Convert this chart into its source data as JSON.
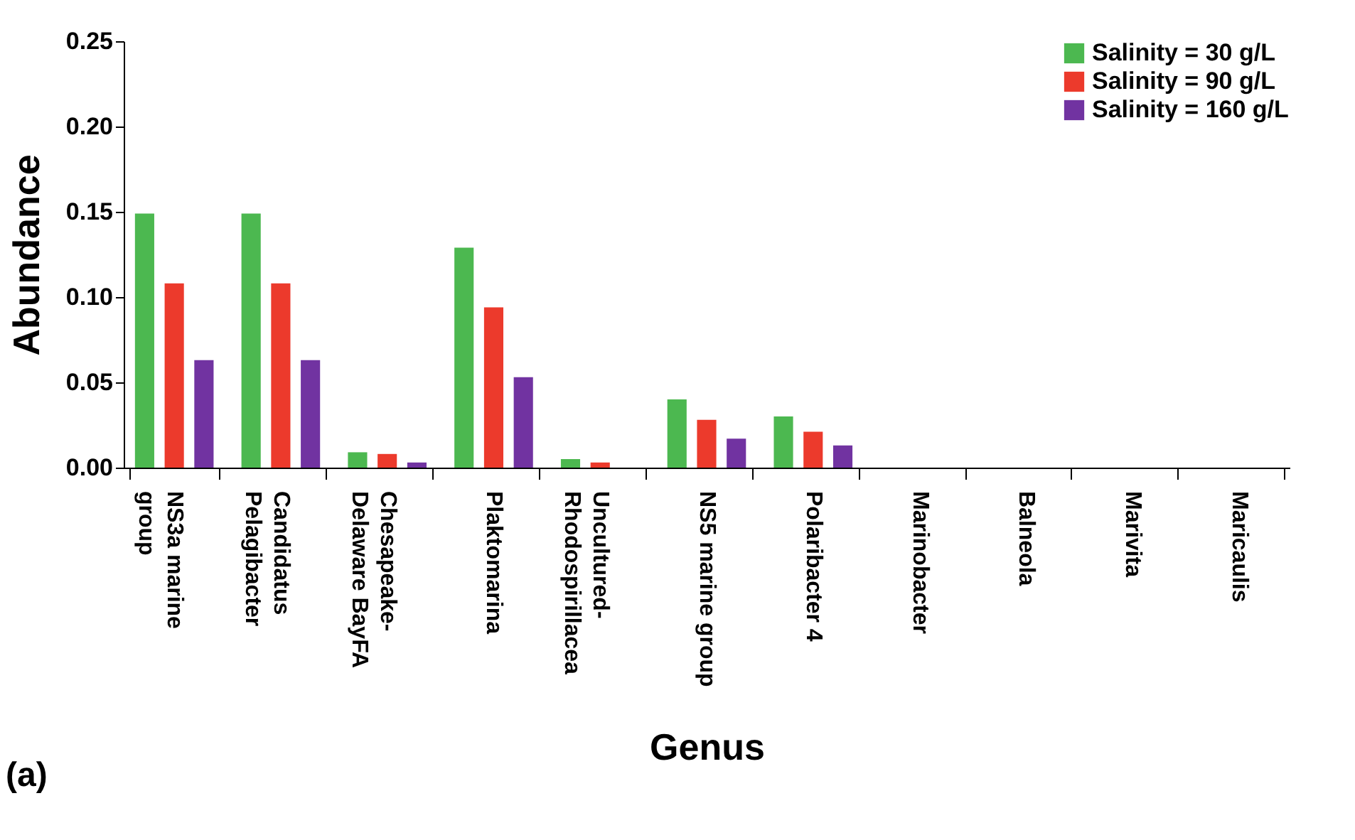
{
  "chart_data": {
    "type": "bar",
    "xlabel": "Genus",
    "ylabel": "Abundance",
    "categories": [
      "NS3a marine\ngroup",
      "Candidatus\nPelagibacter",
      "Chesapeake-\nDelaware BayFA",
      "Plaktomarina",
      "Uncultured-\nRhodospirillacea",
      "NS5 marine group",
      "Polaribacter 4",
      "Marinobacter",
      "Balneola",
      "Marivita",
      "Maricaulis"
    ],
    "series": [
      {
        "name": "Salinity = 30 g/L",
        "color": "#4cb850",
        "values": [
          0.149,
          0.149,
          0.009,
          0.129,
          0.005,
          0.04,
          0.03,
          0,
          0,
          0,
          0
        ]
      },
      {
        "name": "Salinity = 90 g/L",
        "color": "#ec3a2c",
        "values": [
          0.108,
          0.108,
          0.008,
          0.094,
          0.003,
          0.028,
          0.021,
          0,
          0,
          0,
          0
        ]
      },
      {
        "name": "Salinity = 160 g/L",
        "color": "#7133a1",
        "values": [
          0.063,
          0.063,
          0.003,
          0.053,
          0,
          0.017,
          0.013,
          0,
          0,
          0,
          0
        ]
      }
    ],
    "ylim": [
      0,
      0.25
    ],
    "yticks": [
      {
        "value": 0,
        "label": "0.00"
      },
      0.05,
      {
        "value": 0.1,
        "label": "0.10"
      },
      0.15,
      {
        "value": 0.2,
        "label": "0.20"
      },
      0.25
    ],
    "grid": false,
    "legend": "top right",
    "annotations": [
      "(a)"
    ]
  }
}
